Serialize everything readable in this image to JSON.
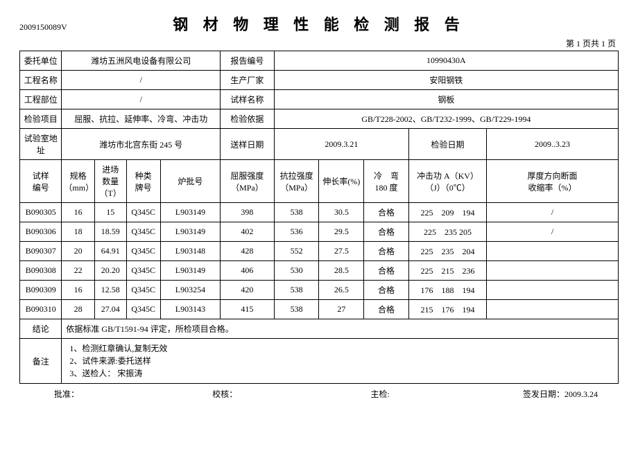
{
  "header": {
    "doc_id": "2009150089V",
    "title": "钢 材 物 理 性 能 检 测 报 告",
    "page_info": "第 1 页共 1 页"
  },
  "info": {
    "labels": {
      "client": "委托单位",
      "report_no": "报告编号",
      "project_name": "工程名称",
      "manufacturer": "生产厂家",
      "project_part": "工程部位",
      "sample_name": "试样名称",
      "test_items": "检验项目",
      "test_basis": "检验依据",
      "lab_address": "试验室地址",
      "send_date": "送样日期",
      "test_date": "检验日期"
    },
    "values": {
      "client": "潍坊五洲风电设备有限公司",
      "report_no": "10990430A",
      "project_name": "/",
      "manufacturer": "安阳钢铁",
      "project_part": "/",
      "sample_name": "钢板",
      "test_items": "屈服、抗拉、延伸率、冷弯、冲击功",
      "test_basis": "GB/T228-2002、GB/T232-1999、GB/T229-1994",
      "lab_address": "潍坊市北宫东街 245 号",
      "send_date": "2009.3.21",
      "test_date": "2009..3.23"
    }
  },
  "table": {
    "headers": {
      "sample_no": "试样\n编号",
      "spec": "规格\n（mm）",
      "qty": "进场\n数量\n（T）",
      "type": "种类\n牌号",
      "furnace": "炉批号",
      "yield": "屈服强度\n（MPa）",
      "tensile": "抗拉强度\n（MPa）",
      "elongation": "伸长率(%)",
      "cold_bend": "冷　弯\n180 度",
      "impact": "冲击功 A（KV）\n（J）（0℃）",
      "thickness": "厚度方向断面\n收缩率（%）"
    },
    "rows": [
      {
        "sample_no": "B090305",
        "spec": "16",
        "qty": "15",
        "type": "Q345C",
        "furnace": "L903149",
        "yield": "398",
        "tensile": "538",
        "elongation": "30.5",
        "cold_bend": "合格",
        "impact": "225　209　194",
        "thickness": "/"
      },
      {
        "sample_no": "B090306",
        "spec": "18",
        "qty": "18.59",
        "type": "Q345C",
        "furnace": "L903149",
        "yield": "402",
        "tensile": "536",
        "elongation": "29.5",
        "cold_bend": "合格",
        "impact": "225　235 205",
        "thickness": "/"
      },
      {
        "sample_no": "B090307",
        "spec": "20",
        "qty": "64.91",
        "type": "Q345C",
        "furnace": "L903148",
        "yield": "428",
        "tensile": "552",
        "elongation": "27.5",
        "cold_bend": "合格",
        "impact": "225　235　204",
        "thickness": ""
      },
      {
        "sample_no": "B090308",
        "spec": "22",
        "qty": "20.20",
        "type": "Q345C",
        "furnace": "L903149",
        "yield": "406",
        "tensile": "530",
        "elongation": "28.5",
        "cold_bend": "合格",
        "impact": "225　215　236",
        "thickness": ""
      },
      {
        "sample_no": "B090309",
        "spec": "16",
        "qty": "12.58",
        "type": "Q345C",
        "furnace": "L903254",
        "yield": "420",
        "tensile": "538",
        "elongation": "26.5",
        "cold_bend": "合格",
        "impact": "176　188　194",
        "thickness": ""
      },
      {
        "sample_no": "B090310",
        "spec": "28",
        "qty": "27.04",
        "type": "Q345C",
        "furnace": "L903143",
        "yield": "415",
        "tensile": "538",
        "elongation": "27",
        "cold_bend": "合格",
        "impact": "215　176　194",
        "thickness": ""
      }
    ]
  },
  "conclusion": {
    "label": "结论",
    "text": "依据标准 GB/T1591-94 评定，所检项目合格。"
  },
  "remarks": {
    "label": "备注",
    "lines": {
      "l1": "1、检测红章确认,复制无效",
      "l2": "2、试件来源:委托送样",
      "l3": "3、送检人：  宋振涛"
    }
  },
  "footer": {
    "approve": "批准：",
    "check": "校核：",
    "main_check": "主检:",
    "issue_date_label": "签发日期：",
    "issue_date": "2009.3.24"
  }
}
